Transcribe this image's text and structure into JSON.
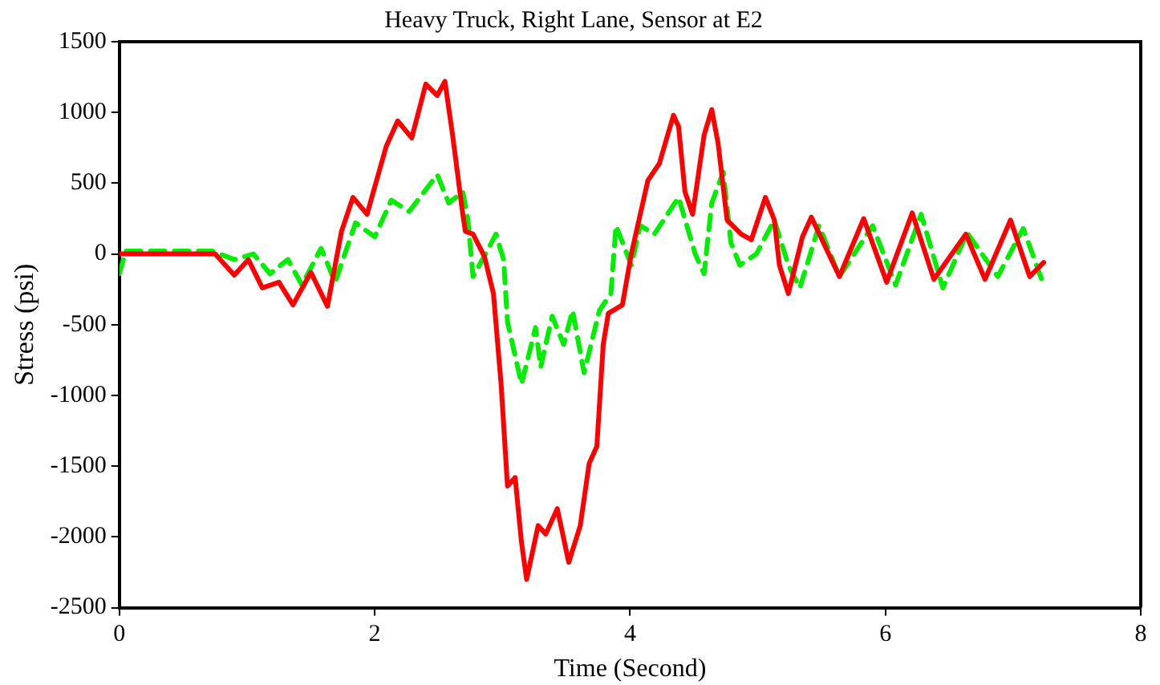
{
  "chart_data": {
    "type": "line",
    "title": "Heavy Truck, Right Lane, Sensor at E2",
    "xlabel": "Time (Second)",
    "ylabel": "Stress (psi)",
    "xlim": [
      0,
      8
    ],
    "xticks": [
      0,
      2,
      4,
      6,
      8
    ],
    "ylim": [
      -2500,
      1500
    ],
    "yticks": [
      -2500,
      -2000,
      -1500,
      -1000,
      -500,
      0,
      500,
      1000,
      1500
    ],
    "grid": false,
    "legend": false,
    "marker": "none",
    "series": [
      {
        "color": "#ff0000",
        "line_style": "solid",
        "x": [
          0,
          0.75,
          0.9,
          1.01,
          1.12,
          1.25,
          1.36,
          1.5,
          1.63,
          1.74,
          1.83,
          1.94,
          2.09,
          2.18,
          2.29,
          2.4,
          2.49,
          2.55,
          2.61,
          2.69,
          2.71,
          2.77,
          2.86,
          2.93,
          2.99,
          3.04,
          3.1,
          3.15,
          3.19,
          3.28,
          3.34,
          3.43,
          3.52,
          3.61,
          3.68,
          3.74,
          3.79,
          3.83,
          3.94,
          4.01,
          4.14,
          4.23,
          4.34,
          4.38,
          4.43,
          4.49,
          4.58,
          4.64,
          4.69,
          4.76,
          4.87,
          4.95,
          5.06,
          5.13,
          5.17,
          5.24,
          5.35,
          5.42,
          5.64,
          5.83,
          6.01,
          6.21,
          6.38,
          6.63,
          6.78,
          6.98,
          7.13,
          7.24
        ],
        "values": [
          0,
          0,
          -150,
          -40,
          -240,
          -200,
          -360,
          -130,
          -370,
          160,
          400,
          280,
          760,
          940,
          820,
          1200,
          1120,
          1220,
          840,
          280,
          160,
          140,
          -20,
          -280,
          -920,
          -1640,
          -1580,
          -2040,
          -2300,
          -1920,
          -1980,
          -1800,
          -2180,
          -1920,
          -1480,
          -1360,
          -640,
          -420,
          -360,
          0,
          520,
          640,
          980,
          900,
          440,
          280,
          840,
          1020,
          780,
          240,
          140,
          100,
          400,
          240,
          -80,
          -280,
          120,
          260,
          -160,
          250,
          -200,
          290,
          -180,
          140,
          -180,
          240,
          -160,
          -60
        ]
      },
      {
        "color": "#00ee00",
        "line_style": "dashed",
        "x": [
          0,
          0.05,
          0.73,
          0.9,
          1.05,
          1.18,
          1.32,
          1.43,
          1.58,
          1.69,
          1.85,
          2.0,
          2.13,
          2.27,
          2.49,
          2.58,
          2.69,
          2.73,
          2.77,
          2.88,
          2.95,
          3.01,
          3.04,
          3.15,
          3.26,
          3.3,
          3.39,
          3.48,
          3.55,
          3.64,
          3.76,
          3.85,
          3.89,
          4.01,
          4.08,
          4.19,
          4.38,
          4.51,
          4.58,
          4.64,
          4.73,
          4.79,
          4.86,
          4.99,
          5.13,
          5.24,
          5.33,
          5.48,
          5.64,
          5.9,
          6.08,
          6.28,
          6.45,
          6.64,
          6.88,
          7.08,
          7.24
        ],
        "values": [
          -140,
          20,
          20,
          -40,
          0,
          -140,
          -40,
          -220,
          40,
          -200,
          220,
          120,
          380,
          300,
          560,
          360,
          440,
          240,
          -160,
          20,
          140,
          -40,
          -480,
          -920,
          -520,
          -800,
          -440,
          -640,
          -400,
          -840,
          -400,
          -280,
          200,
          -80,
          200,
          140,
          400,
          0,
          -140,
          360,
          580,
          80,
          -80,
          0,
          240,
          -80,
          -240,
          200,
          -160,
          200,
          -220,
          280,
          -240,
          150,
          -160,
          180,
          -220
        ]
      }
    ]
  }
}
